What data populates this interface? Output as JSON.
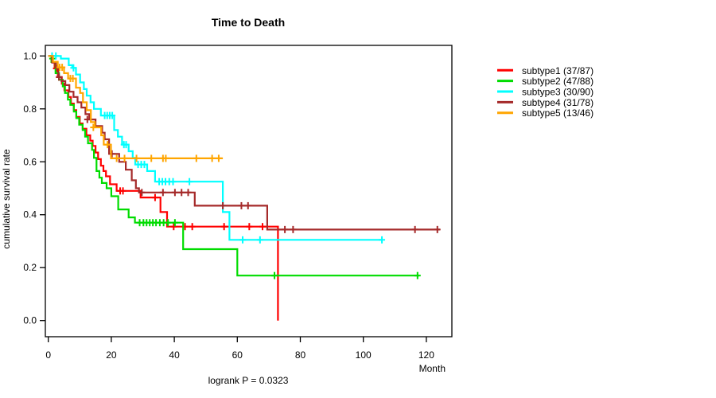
{
  "chart_data": {
    "type": "line",
    "subtype": "kaplan-meier-step-curves",
    "title": "Time to Death",
    "xlabel": "Month",
    "ylabel": "cumulative survival rate",
    "footnote": "logrank P = 0.0323",
    "xlim": [
      0,
      120
    ],
    "ylim": [
      0.0,
      1.0
    ],
    "grid": false,
    "legend_position": "right",
    "x_ticks": [
      {
        "value": 0,
        "label": "0"
      },
      {
        "value": 20,
        "label": "20"
      },
      {
        "value": 40,
        "label": "40"
      },
      {
        "value": 60,
        "label": "60"
      },
      {
        "value": 80,
        "label": "80"
      },
      {
        "value": 100,
        "label": "100"
      },
      {
        "value": 120,
        "label": "120"
      }
    ],
    "y_ticks": [
      {
        "value": 0.0,
        "label": "0.0"
      },
      {
        "value": 0.2,
        "label": "0.2"
      },
      {
        "value": 0.4,
        "label": "0.4"
      },
      {
        "value": 0.6,
        "label": "0.6"
      },
      {
        "value": 0.8,
        "label": "0.8"
      },
      {
        "value": 1.0,
        "label": "1.0"
      }
    ],
    "series": [
      {
        "name": "subtype1",
        "label": "subtype1 (37/87)",
        "events_over_n": "37/87",
        "color": "#FF0000",
        "end_time": 72.9,
        "steps": [
          [
            0,
            1.0
          ],
          [
            1,
            0.977
          ],
          [
            2,
            0.953
          ],
          [
            3,
            0.92
          ],
          [
            4.3,
            0.895
          ],
          [
            5.1,
            0.87
          ],
          [
            6.4,
            0.845
          ],
          [
            7.2,
            0.82
          ],
          [
            8.1,
            0.795
          ],
          [
            8.9,
            0.77
          ],
          [
            10,
            0.745
          ],
          [
            10.9,
            0.725
          ],
          [
            12.1,
            0.7
          ],
          [
            13.3,
            0.68
          ],
          [
            14.1,
            0.66
          ],
          [
            15,
            0.635
          ],
          [
            15.8,
            0.61
          ],
          [
            16.7,
            0.585
          ],
          [
            17.5,
            0.565
          ],
          [
            18.3,
            0.545
          ],
          [
            19.6,
            0.515
          ],
          [
            21.7,
            0.49
          ],
          [
            29.3,
            0.465
          ],
          [
            35.6,
            0.41
          ],
          [
            37.7,
            0.355
          ],
          [
            72.9,
            0.0
          ]
        ],
        "censors": [
          [
            2.5,
            0.953
          ],
          [
            22.8,
            0.49
          ],
          [
            23.7,
            0.49
          ],
          [
            33.9,
            0.465
          ],
          [
            39.8,
            0.355
          ],
          [
            43.4,
            0.355
          ],
          [
            45.7,
            0.355
          ],
          [
            55.8,
            0.355
          ],
          [
            63.8,
            0.355
          ],
          [
            68,
            0.355
          ]
        ]
      },
      {
        "name": "subtype2",
        "label": "subtype2 (47/88)",
        "events_over_n": "47/88",
        "color": "#00DC00",
        "end_time": 117.7,
        "steps": [
          [
            0,
            1.0
          ],
          [
            1,
            0.977
          ],
          [
            2.3,
            0.935
          ],
          [
            3.4,
            0.91
          ],
          [
            4.6,
            0.885
          ],
          [
            5.3,
            0.86
          ],
          [
            6.2,
            0.835
          ],
          [
            7,
            0.815
          ],
          [
            8.1,
            0.79
          ],
          [
            8.9,
            0.765
          ],
          [
            9.8,
            0.74
          ],
          [
            10.9,
            0.72
          ],
          [
            11.7,
            0.695
          ],
          [
            12.6,
            0.67
          ],
          [
            13.9,
            0.645
          ],
          [
            14.5,
            0.615
          ],
          [
            15.3,
            0.565
          ],
          [
            16.2,
            0.54
          ],
          [
            17,
            0.52
          ],
          [
            18.5,
            0.5
          ],
          [
            20,
            0.47
          ],
          [
            22.2,
            0.42
          ],
          [
            25.5,
            0.39
          ],
          [
            27.5,
            0.37
          ],
          [
            42.8,
            0.27
          ],
          [
            60,
            0.17
          ]
        ],
        "censors": [
          [
            1.3,
            0.99
          ],
          [
            29,
            0.37
          ],
          [
            30.2,
            0.37
          ],
          [
            31.2,
            0.37
          ],
          [
            32.2,
            0.37
          ],
          [
            33.2,
            0.37
          ],
          [
            34.2,
            0.37
          ],
          [
            35.4,
            0.37
          ],
          [
            36.6,
            0.37
          ],
          [
            38,
            0.37
          ],
          [
            40.2,
            0.37
          ],
          [
            71.8,
            0.17
          ],
          [
            117.2,
            0.17
          ]
        ]
      },
      {
        "name": "subtype3",
        "label": "subtype3 (30/90)",
        "events_over_n": "30/90",
        "color": "#00FFFF",
        "end_time": 105.9,
        "steps": [
          [
            0,
            1.0
          ],
          [
            4,
            0.99
          ],
          [
            6.5,
            0.965
          ],
          [
            7.6,
            0.955
          ],
          [
            8.8,
            0.93
          ],
          [
            10.1,
            0.9
          ],
          [
            11.3,
            0.875
          ],
          [
            12.2,
            0.85
          ],
          [
            13.4,
            0.825
          ],
          [
            14.5,
            0.8
          ],
          [
            16.7,
            0.775
          ],
          [
            20.9,
            0.72
          ],
          [
            22.1,
            0.695
          ],
          [
            23.4,
            0.665
          ],
          [
            25.5,
            0.64
          ],
          [
            26.8,
            0.615
          ],
          [
            27.6,
            0.59
          ],
          [
            31.4,
            0.565
          ],
          [
            33.9,
            0.525
          ],
          [
            55.4,
            0.41
          ],
          [
            57.5,
            0.305
          ]
        ],
        "censors": [
          [
            1.2,
            1.0
          ],
          [
            2.4,
            1.0
          ],
          [
            8,
            0.955
          ],
          [
            17.9,
            0.775
          ],
          [
            18.7,
            0.775
          ],
          [
            19.5,
            0.775
          ],
          [
            20.3,
            0.775
          ],
          [
            24,
            0.665
          ],
          [
            24.7,
            0.665
          ],
          [
            28.5,
            0.59
          ],
          [
            29.5,
            0.59
          ],
          [
            30.5,
            0.59
          ],
          [
            35.2,
            0.525
          ],
          [
            36.2,
            0.525
          ],
          [
            37.2,
            0.525
          ],
          [
            38.4,
            0.525
          ],
          [
            39.6,
            0.525
          ],
          [
            44.8,
            0.525
          ],
          [
            61.7,
            0.305
          ],
          [
            67.2,
            0.305
          ],
          [
            105.9,
            0.305
          ]
        ]
      },
      {
        "name": "subtype4",
        "label": "subtype4 (31/78)",
        "events_over_n": "31/78",
        "color": "#A52A2A",
        "end_time": 124.3,
        "steps": [
          [
            0,
            1.0
          ],
          [
            1.2,
            0.975
          ],
          [
            2.4,
            0.955
          ],
          [
            3.2,
            0.92
          ],
          [
            4.2,
            0.905
          ],
          [
            5.4,
            0.89
          ],
          [
            6.7,
            0.865
          ],
          [
            8,
            0.845
          ],
          [
            9.3,
            0.825
          ],
          [
            10.5,
            0.805
          ],
          [
            11.8,
            0.78
          ],
          [
            13,
            0.76
          ],
          [
            15,
            0.735
          ],
          [
            17.1,
            0.71
          ],
          [
            17.9,
            0.685
          ],
          [
            19.3,
            0.63
          ],
          [
            22.5,
            0.6
          ],
          [
            24.6,
            0.57
          ],
          [
            26.5,
            0.53
          ],
          [
            27.8,
            0.5
          ],
          [
            28.8,
            0.484
          ],
          [
            46.5,
            0.434
          ],
          [
            69.5,
            0.344
          ]
        ],
        "censors": [
          [
            3.4,
            0.92
          ],
          [
            12.4,
            0.76
          ],
          [
            20.2,
            0.63
          ],
          [
            29.7,
            0.484
          ],
          [
            36.4,
            0.484
          ],
          [
            40.2,
            0.484
          ],
          [
            42.3,
            0.484
          ],
          [
            44.4,
            0.484
          ],
          [
            55.4,
            0.434
          ],
          [
            61.3,
            0.434
          ],
          [
            63.4,
            0.434
          ],
          [
            75.1,
            0.344
          ],
          [
            77.7,
            0.344
          ],
          [
            116.4,
            0.344
          ],
          [
            123.5,
            0.344
          ]
        ]
      },
      {
        "name": "subtype5",
        "label": "subtype5 (13/46)",
        "events_over_n": "13/46",
        "color": "#FFA500",
        "end_time": 55.4,
        "steps": [
          [
            0,
            1.0
          ],
          [
            1.5,
            0.978
          ],
          [
            3,
            0.957
          ],
          [
            5,
            0.935
          ],
          [
            6.3,
            0.915
          ],
          [
            8.8,
            0.88
          ],
          [
            10.1,
            0.86
          ],
          [
            11,
            0.825
          ],
          [
            12.2,
            0.795
          ],
          [
            13.5,
            0.75
          ],
          [
            14.8,
            0.73
          ],
          [
            16.8,
            0.7
          ],
          [
            17.6,
            0.665
          ],
          [
            19.9,
            0.613
          ]
        ],
        "censors": [
          [
            3.6,
            0.957
          ],
          [
            4.4,
            0.957
          ],
          [
            7,
            0.915
          ],
          [
            7.8,
            0.915
          ],
          [
            14.3,
            0.73
          ],
          [
            18.8,
            0.665
          ],
          [
            21.7,
            0.613
          ],
          [
            24.2,
            0.613
          ],
          [
            28,
            0.613
          ],
          [
            32.7,
            0.613
          ],
          [
            36.4,
            0.613
          ],
          [
            37.3,
            0.613
          ],
          [
            47,
            0.613
          ],
          [
            52,
            0.613
          ],
          [
            54.1,
            0.613
          ]
        ]
      }
    ]
  }
}
